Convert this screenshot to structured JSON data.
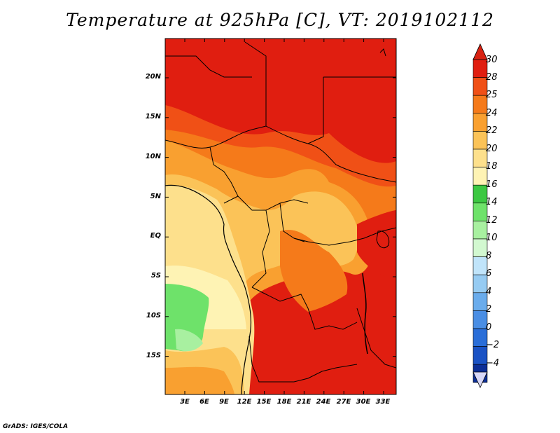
{
  "title": "Temperature at 925hPa [C], VT: 2019102112",
  "credit": "GrADS: IGES/COLA",
  "map": {
    "region": "Central Africa",
    "lon_labels": [
      "3E",
      "6E",
      "9E",
      "12E",
      "15E",
      "18E",
      "21E",
      "24E",
      "27E",
      "30E",
      "33E"
    ],
    "lat_labels": [
      "20N",
      "15N",
      "10N",
      "5N",
      "EQ",
      "5S",
      "10S",
      "15S"
    ]
  },
  "colorbar": {
    "labels": [
      "30",
      "28",
      "25",
      "24",
      "22",
      "20",
      "18",
      "16",
      "14",
      "12",
      "10",
      "8",
      "6",
      "4",
      "2",
      "0",
      "−2",
      "−4"
    ],
    "colors": [
      "#e01e10",
      "#f05016",
      "#f57a1a",
      "#f9a030",
      "#fbc358",
      "#fde08c",
      "#fef3b4",
      "#3cc842",
      "#6ee26a",
      "#a8f0a0",
      "#d2f8d0",
      "#c0e4fa",
      "#96cbf2",
      "#6aacec",
      "#4a8ee4",
      "#2a6ed8",
      "#1a52c4",
      "#0c2e96"
    ],
    "over_color": "#d82212",
    "under_color": "#d8d8f8"
  }
}
